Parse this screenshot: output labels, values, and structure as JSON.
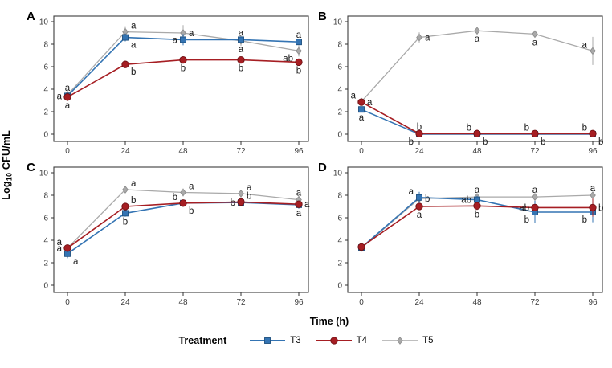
{
  "figure": {
    "y_axis_label": {
      "prefix": "Log",
      "sub": "10",
      "suffix": " CFU/mL"
    },
    "x_axis_label": "Time (h)",
    "legend": {
      "title": "Treatment",
      "entries": [
        {
          "label": "T3"
        },
        {
          "label": "T4"
        },
        {
          "label": "T5"
        }
      ]
    }
  },
  "chart_data": {
    "type": "line",
    "x": [
      0,
      24,
      48,
      72,
      96
    ],
    "xlabel": "Time (h)",
    "ylabel": "Log10 CFU/mL",
    "ylim": [
      0,
      10
    ],
    "yticks": [
      0,
      2,
      4,
      6,
      8,
      10
    ],
    "legend_title": "Treatment",
    "legend_position": "bottom",
    "grid": false,
    "series_style": {
      "T3": {
        "color": "#3474b3",
        "edge": "#1d4f7e",
        "marker": "square",
        "lw": 1.6
      },
      "T4": {
        "color": "#a61e23",
        "edge": "#6f1114",
        "marker": "circle",
        "lw": 1.6
      },
      "T5": {
        "color": "#a9a9a9",
        "edge": "#8a8a8a",
        "marker": "diamond",
        "lw": 1.3
      }
    },
    "panels": [
      {
        "label": "A",
        "series": [
          {
            "name": "T3",
            "values": [
              3.4,
              8.6,
              8.4,
              8.4,
              8.2
            ],
            "errors": [
              0.35,
              0.35,
              0.5,
              0.25,
              0.25
            ],
            "annotations": [
              {
                "t": "a",
                "p": "l"
              },
              {
                "t": "a",
                "p": "br"
              },
              {
                "t": "a",
                "p": "l"
              },
              {
                "t": "a",
                "p": "a"
              },
              {
                "t": "a",
                "p": "a"
              }
            ]
          },
          {
            "name": "T4",
            "values": [
              3.3,
              6.2,
              6.6,
              6.6,
              6.4
            ],
            "errors": [
              0.35,
              0.2,
              0.2,
              0.2,
              0.25
            ],
            "annotations": [
              {
                "t": "a",
                "p": "b"
              },
              {
                "t": "b",
                "p": "br"
              },
              {
                "t": "b",
                "p": "b"
              },
              {
                "t": "b",
                "p": "b"
              },
              {
                "t": "b",
                "p": "b"
              }
            ]
          },
          {
            "name": "T5",
            "values": [
              3.5,
              9.1,
              9.0,
              8.3,
              7.4
            ],
            "errors": [
              0.35,
              0.5,
              0.7,
              0.45,
              0.5
            ],
            "annotations": [
              {
                "t": "a",
                "p": "a"
              },
              {
                "t": "a",
                "p": "ar"
              },
              {
                "t": "a",
                "p": "r"
              },
              {
                "t": "a",
                "p": "b"
              },
              {
                "t": "ab",
                "p": "bl"
              }
            ]
          }
        ]
      },
      {
        "label": "B",
        "series": [
          {
            "name": "T3",
            "values": [
              2.2,
              0.0,
              0.0,
              0.0,
              0.0
            ],
            "errors": [
              0.25,
              0.1,
              0.1,
              0.1,
              0.1
            ],
            "annotations": [
              {
                "t": "a",
                "p": "b"
              },
              {
                "t": "b",
                "p": "bl"
              },
              {
                "t": "b",
                "p": "br"
              },
              {
                "t": "b",
                "p": "br"
              },
              {
                "t": "b",
                "p": "br"
              }
            ]
          },
          {
            "name": "T4",
            "values": [
              2.85,
              0.05,
              0.05,
              0.05,
              0.05
            ],
            "errors": [
              0.15,
              0.1,
              0.35,
              0.3,
              0.25
            ],
            "annotations": [
              {
                "t": "a",
                "p": "r"
              },
              {
                "t": "b",
                "p": "a"
              },
              {
                "t": "b",
                "p": "al"
              },
              {
                "t": "b",
                "p": "al"
              },
              {
                "t": "b",
                "p": "al"
              }
            ]
          },
          {
            "name": "T5",
            "values": [
              2.9,
              8.6,
              9.2,
              8.9,
              7.4
            ],
            "errors": [
              0.3,
              0.45,
              0.35,
              0.2,
              1.25
            ],
            "annotations": [
              {
                "t": "a",
                "p": "al"
              },
              {
                "t": "a",
                "p": "r"
              },
              {
                "t": "a",
                "p": "b"
              },
              {
                "t": "a",
                "p": "b"
              },
              {
                "t": "a",
                "p": "al"
              }
            ]
          }
        ]
      },
      {
        "label": "C",
        "series": [
          {
            "name": "T3",
            "values": [
              2.8,
              6.4,
              7.3,
              7.35,
              7.15
            ],
            "errors": [
              0.4,
              0.3,
              0.25,
              0.2,
              0.35
            ],
            "annotations": [
              {
                "t": "a",
                "p": "br"
              },
              {
                "t": "b",
                "p": "b"
              },
              {
                "t": "b",
                "p": "br"
              },
              {
                "t": "b",
                "p": "l"
              },
              {
                "t": "a",
                "p": "b"
              }
            ]
          },
          {
            "name": "T4",
            "values": [
              3.3,
              7.0,
              7.3,
              7.4,
              7.2
            ],
            "errors": [
              0.3,
              0.25,
              0.25,
              0.25,
              0.3
            ],
            "annotations": [
              {
                "t": "a",
                "p": "l"
              },
              {
                "t": "b",
                "p": "ar"
              },
              {
                "t": "b",
                "p": "al"
              },
              {
                "t": "b",
                "p": "ar"
              },
              {
                "t": "a",
                "p": "r"
              }
            ]
          },
          {
            "name": "T5",
            "values": [
              3.3,
              8.5,
              8.25,
              8.15,
              7.6
            ],
            "errors": [
              0.3,
              0.3,
              0.35,
              0.35,
              0.3
            ],
            "annotations": [
              {
                "t": "a",
                "p": "al"
              },
              {
                "t": "a",
                "p": "ar"
              },
              {
                "t": "a",
                "p": "ar"
              },
              {
                "t": "a",
                "p": "ar"
              },
              {
                "t": "a",
                "p": "a"
              }
            ]
          }
        ]
      },
      {
        "label": "D",
        "series": [
          {
            "name": "T3",
            "values": [
              3.35,
              7.8,
              7.6,
              6.5,
              6.5
            ],
            "errors": [
              0.3,
              0.5,
              0.35,
              1.0,
              0.9
            ],
            "annotations": [
              null,
              {
                "t": "a",
                "p": "al"
              },
              {
                "t": "ab",
                "p": "l"
              },
              {
                "t": "b",
                "p": "bl"
              },
              {
                "t": "b",
                "p": "bl"
              }
            ]
          },
          {
            "name": "T4",
            "values": [
              3.4,
              7.0,
              7.05,
              6.9,
              6.9
            ],
            "errors": [
              0.3,
              0.3,
              0.35,
              0.3,
              0.8
            ],
            "annotations": [
              null,
              {
                "t": "a",
                "p": "b"
              },
              {
                "t": "b",
                "p": "b"
              },
              {
                "t": "ab",
                "p": "l"
              },
              {
                "t": "b",
                "p": "r"
              }
            ]
          },
          {
            "name": "T5",
            "values": [
              3.3,
              7.7,
              7.85,
              7.85,
              8.0
            ],
            "errors": [
              0.3,
              0.3,
              0.3,
              0.35,
              0.3
            ],
            "annotations": [
              null,
              {
                "t": "b",
                "p": "r"
              },
              {
                "t": "a",
                "p": "a"
              },
              {
                "t": "a",
                "p": "a"
              },
              {
                "t": "a",
                "p": "a"
              }
            ]
          }
        ]
      }
    ]
  }
}
